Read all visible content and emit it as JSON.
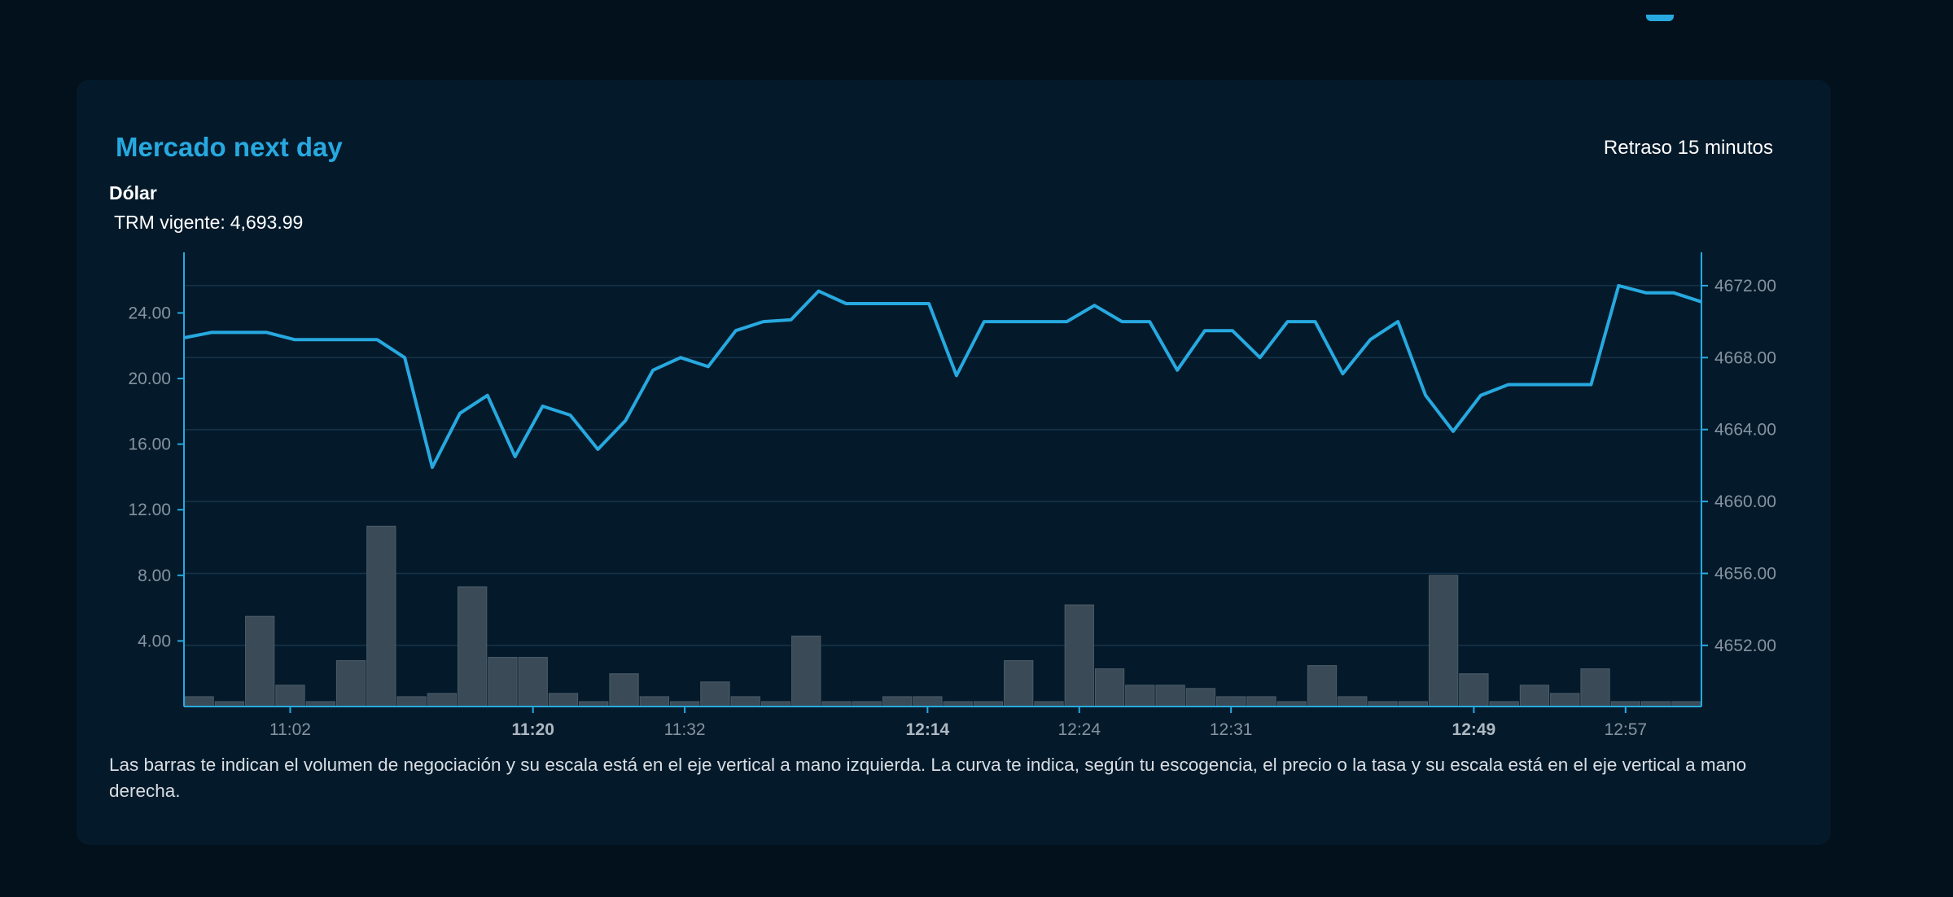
{
  "card": {
    "title": "Mercado next day",
    "delay_label": "Retraso 15 minutos",
    "asset": "Dólar",
    "trm_label": "TRM vigente:",
    "trm_value": "4,693.99",
    "footnote": "Las barras te indican el volumen de negociación y su escala está en el eje vertical a mano izquierda. La curva te indica, según tu escogencia, el precio o la tasa y su escala está en el eje vertical a mano derecha."
  },
  "colors": {
    "page_bg": "#03111c",
    "card_bg": "#041a2b",
    "accent": "#27a9e0",
    "bar": "#3a4a57",
    "grid": "#163349"
  },
  "chart_data": {
    "type": "bar+line",
    "series": [
      {
        "type": "bar",
        "axis": "left",
        "values": [
          0.6,
          0.3,
          5.5,
          1.3,
          0.3,
          2.8,
          11.0,
          0.6,
          0.8,
          7.3,
          3.0,
          3.0,
          0.8,
          0.3,
          2.0,
          0.6,
          0.3,
          1.5,
          0.6,
          0.3,
          4.3,
          0.3,
          0.3,
          0.6,
          0.6,
          0.3,
          0.3,
          2.8,
          0.3,
          6.2,
          2.3,
          1.3,
          1.3,
          1.1,
          0.6,
          0.6,
          0.3,
          2.5,
          0.6,
          0.3,
          0.3,
          8.0,
          2.0,
          0.3,
          1.3,
          0.8,
          2.3,
          0.3,
          0.3,
          0.3
        ]
      },
      {
        "type": "line",
        "axis": "right",
        "values": [
          4669.1,
          4669.4,
          4669.4,
          4669.4,
          4669.0,
          4669.0,
          4669.0,
          4669.0,
          4668.0,
          4661.9,
          4664.9,
          4665.9,
          4662.5,
          4665.3,
          4664.8,
          4662.9,
          4664.5,
          4667.3,
          4668.0,
          4667.5,
          4669.5,
          4670.0,
          4670.1,
          4671.7,
          4671.0,
          4671.0,
          4671.0,
          4671.0,
          4667.0,
          4670.0,
          4670.0,
          4670.0,
          4670.0,
          4670.9,
          4670.0,
          4670.0,
          4667.3,
          4669.5,
          4669.5,
          4668.0,
          4670.0,
          4670.0,
          4667.1,
          4669.0,
          4670.0,
          4665.9,
          4663.9,
          4665.9,
          4666.5,
          4666.5,
          4666.5,
          4666.5,
          4672.0,
          4671.6,
          4671.6,
          4671.1
        ]
      }
    ],
    "x_ticks": [
      {
        "label": "11:02",
        "bold": false
      },
      {
        "label": "11:20",
        "bold": true
      },
      {
        "label": "11:32",
        "bold": false
      },
      {
        "label": "12:14",
        "bold": true
      },
      {
        "label": "12:24",
        "bold": false
      },
      {
        "label": "12:31",
        "bold": false
      },
      {
        "label": "12:49",
        "bold": true
      },
      {
        "label": "12:57",
        "bold": false
      }
    ],
    "left_axis": {
      "ticks": [
        "4.00",
        "8.00",
        "12.00",
        "16.00",
        "20.00",
        "24.00"
      ],
      "range": [
        0,
        27.2
      ]
    },
    "right_axis": {
      "ticks": [
        "4652.00",
        "4656.00",
        "4660.00",
        "4664.00",
        "4668.00",
        "4672.00"
      ],
      "range": [
        4648.6,
        4673.4
      ]
    },
    "grid": true
  }
}
